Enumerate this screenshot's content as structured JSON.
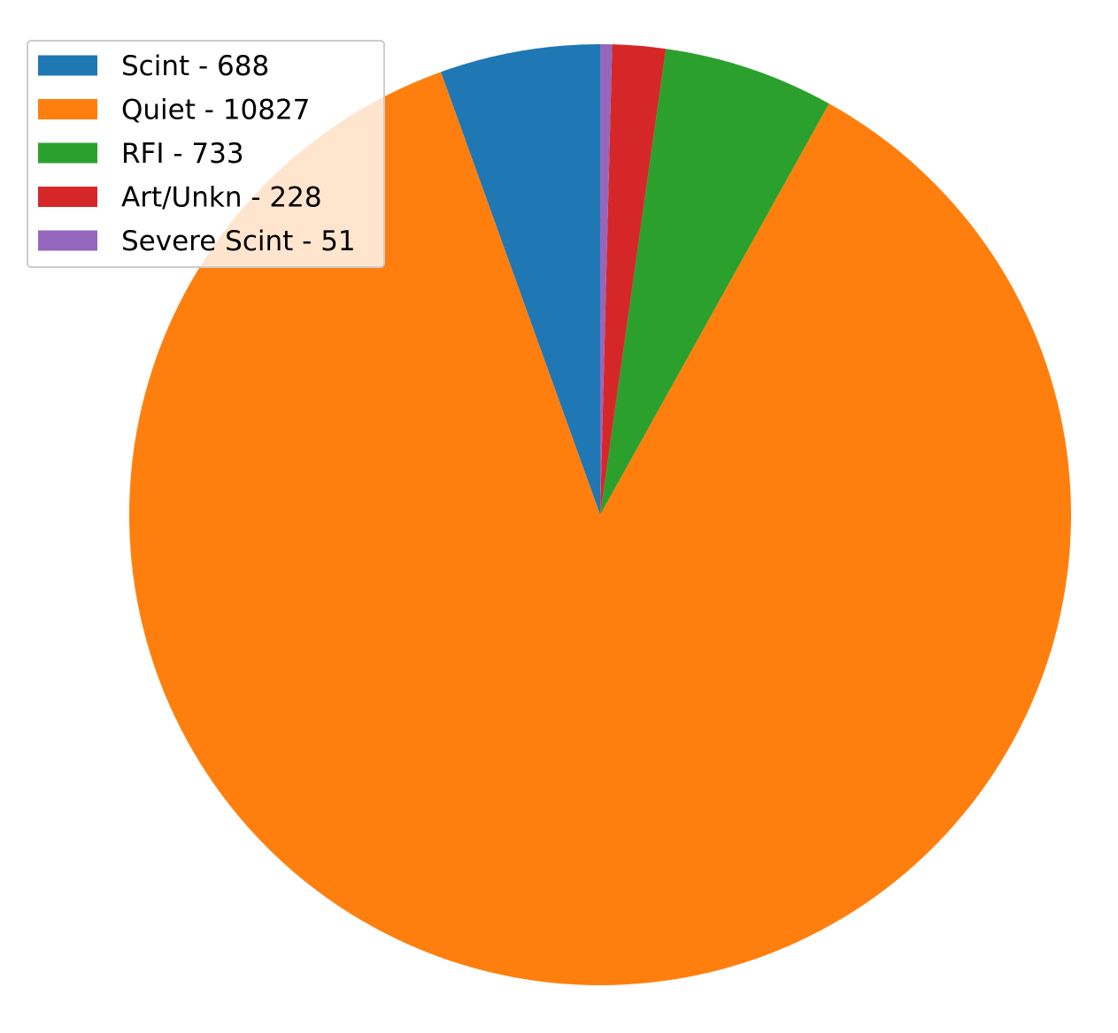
{
  "chart_data": {
    "type": "pie",
    "title": "",
    "legend_position": "top-left",
    "start_angle_deg": 90,
    "direction": "counterclockwise",
    "slices": [
      {
        "label": "Scint - 688",
        "value": 688,
        "color": "#1f77b4"
      },
      {
        "label": "Quiet - 10827",
        "value": 10827,
        "color": "#ff7f0e"
      },
      {
        "label": "RFI - 733",
        "value": 733,
        "color": "#2ca02c"
      },
      {
        "label": "Art/Unkn - 228",
        "value": 228,
        "color": "#d62728"
      },
      {
        "label": "Severe Scint - 51",
        "value": 51,
        "color": "#9467bd"
      }
    ]
  }
}
